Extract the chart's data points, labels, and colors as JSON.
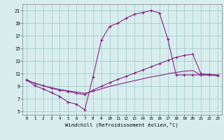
{
  "xlabel": "Windchill (Refroidissement éolien,°C)",
  "background_color": "#d8eeee",
  "grid_color": "#a8cccc",
  "line_color": "#882288",
  "xlim_min": -0.5,
  "xlim_max": 23.5,
  "ylim_min": 4.5,
  "ylim_max": 22.0,
  "yticks": [
    5,
    7,
    9,
    11,
    13,
    15,
    17,
    19,
    21
  ],
  "xticks": [
    0,
    1,
    2,
    3,
    4,
    5,
    6,
    7,
    8,
    9,
    10,
    11,
    12,
    13,
    14,
    15,
    16,
    17,
    18,
    19,
    20,
    21,
    22,
    23
  ],
  "line1_x": [
    0,
    1,
    2,
    3,
    4,
    5,
    6,
    7,
    8,
    9,
    10,
    11,
    12,
    13,
    14,
    15,
    16,
    17,
    18,
    19,
    20,
    21,
    22,
    23
  ],
  "line1_y": [
    10.0,
    9.1,
    8.6,
    8.0,
    7.4,
    6.5,
    6.2,
    5.3,
    10.5,
    16.3,
    18.5,
    19.0,
    19.8,
    20.4,
    20.7,
    21.0,
    20.6,
    16.5,
    10.8,
    10.8,
    10.8,
    10.8,
    10.8,
    10.7
  ],
  "line2_x": [
    0,
    1,
    2,
    3,
    4,
    5,
    6,
    7,
    8,
    9,
    10,
    11,
    12,
    13,
    14,
    15,
    16,
    17,
    18,
    19,
    20,
    21,
    22,
    23
  ],
  "line2_y": [
    10.0,
    9.5,
    9.1,
    8.7,
    8.4,
    8.2,
    7.9,
    7.7,
    8.4,
    9.0,
    9.6,
    10.1,
    10.6,
    11.1,
    11.6,
    12.1,
    12.6,
    13.1,
    13.6,
    13.9,
    14.1,
    11.0,
    10.9,
    10.8
  ],
  "line3_x": [
    0,
    1,
    2,
    3,
    4,
    5,
    6,
    7,
    8,
    9,
    10,
    11,
    12,
    13,
    14,
    15,
    16,
    17,
    18,
    19,
    20,
    21,
    22,
    23
  ],
  "line3_y": [
    10.0,
    9.5,
    9.1,
    8.8,
    8.5,
    8.3,
    8.1,
    7.9,
    8.2,
    8.6,
    9.0,
    9.3,
    9.6,
    9.9,
    10.2,
    10.5,
    10.7,
    11.0,
    11.2,
    11.4,
    11.5,
    10.8,
    10.8,
    10.7
  ]
}
